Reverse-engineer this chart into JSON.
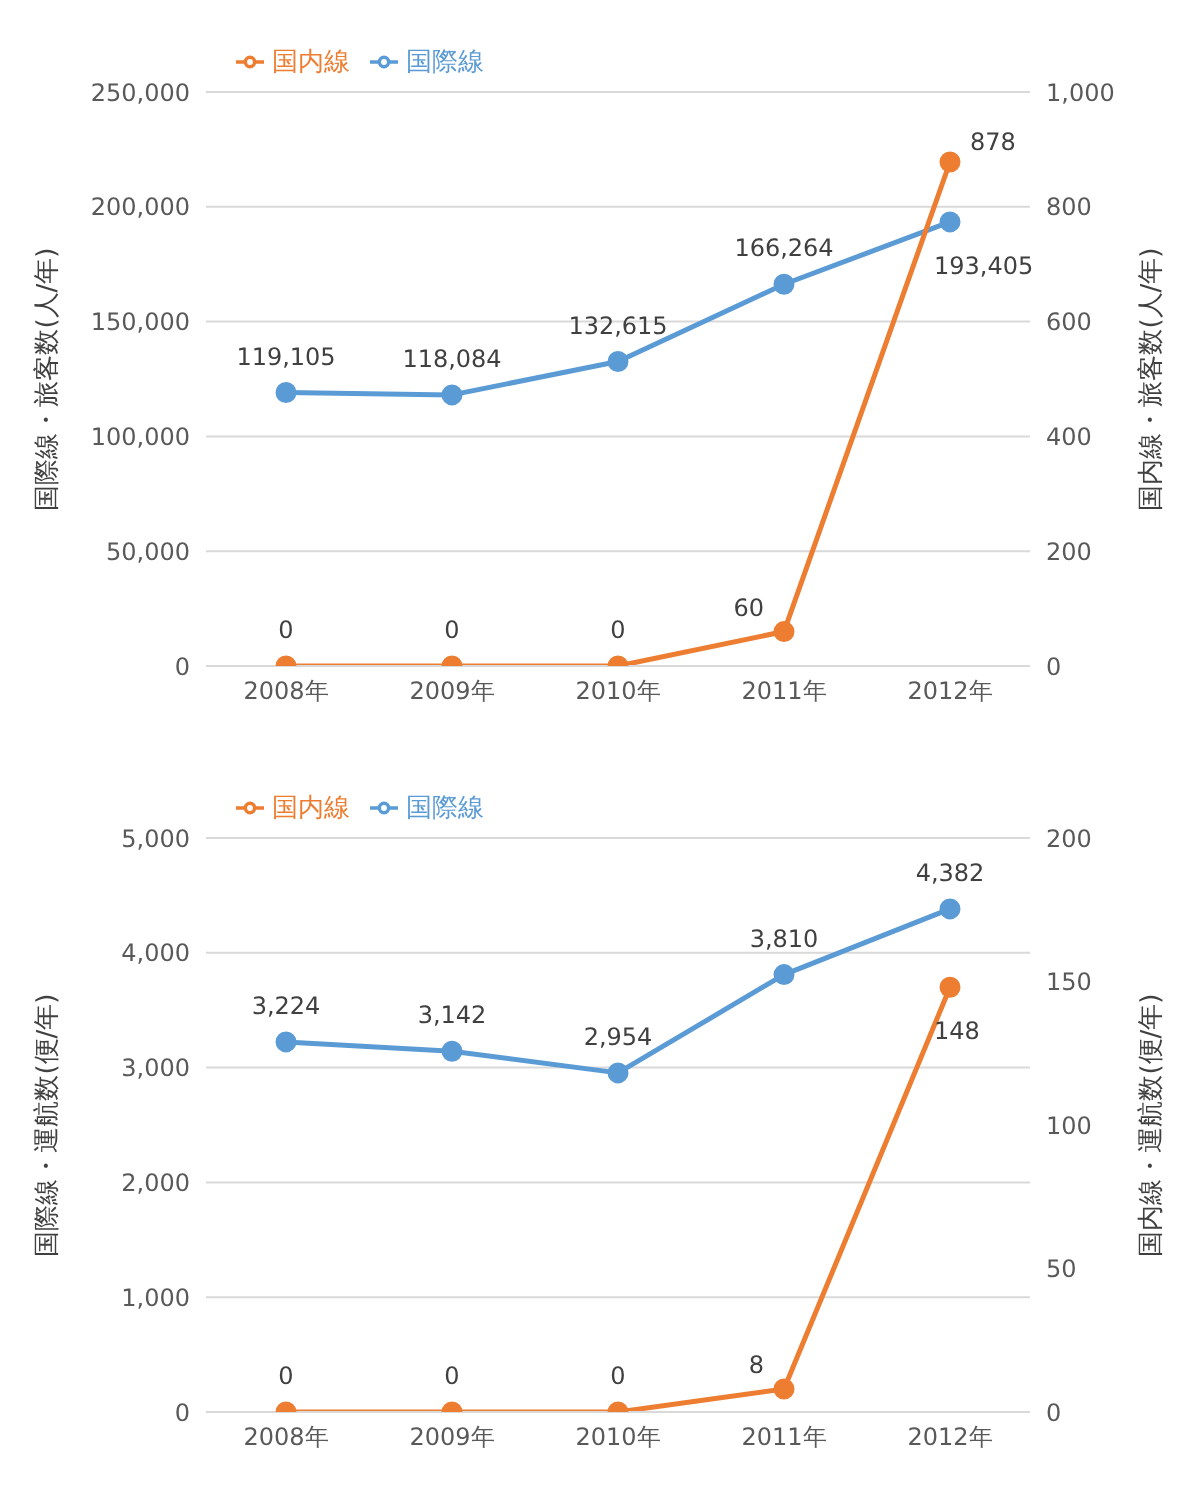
{
  "chart_data": [
    {
      "type": "line",
      "categories": [
        "2008年",
        "2009年",
        "2010年",
        "2011年",
        "2012年"
      ],
      "ylabel": "国際線・旅客数(人/年)",
      "y2label": "国内線・旅客数(人/年)",
      "ylim": [
        0,
        250000
      ],
      "yticks": [
        0,
        {
          "value": 50000,
          "label": "50,000"
        },
        {
          "value": 100000,
          "label": "100,000"
        },
        {
          "value": 150000,
          "label": "150,000"
        },
        {
          "value": 200000,
          "label": "200,000"
        },
        {
          "value": 250000,
          "label": "250,000"
        }
      ],
      "y2lim": [
        0,
        1000
      ],
      "y2ticks": [
        0,
        200,
        400,
        600,
        800,
        {
          "value": 1000,
          "label": "1,000"
        }
      ],
      "grid": "y",
      "legend": "top left",
      "marker": "circle",
      "series": [
        {
          "name": "国際線",
          "color": "#5b9bd5",
          "values": [
            119105,
            118084,
            132615,
            166264,
            193405
          ],
          "value_labels": [
            "119,105",
            "118,084",
            "132,615",
            "166,264",
            "193,405"
          ]
        },
        {
          "name": "国内線",
          "color": "#ed7d31",
          "axis": "y2",
          "values": [
            0,
            0,
            0,
            60,
            878
          ],
          "value_labels": [
            "0",
            "0",
            "0",
            "60",
            "878"
          ]
        }
      ]
    },
    {
      "type": "line",
      "categories": [
        "2008年",
        "2009年",
        "2010年",
        "2011年",
        "2012年"
      ],
      "ylabel": "国際線・運航数(便/年)",
      "y2label": "国内線・運航数(便/年)",
      "ylim": [
        0,
        5000
      ],
      "yticks": [
        0,
        {
          "value": 1000,
          "label": "1,000"
        },
        {
          "value": 2000,
          "label": "2,000"
        },
        {
          "value": 3000,
          "label": "3,000"
        },
        {
          "value": 4000,
          "label": "4,000"
        },
        {
          "value": 5000,
          "label": "5,000"
        }
      ],
      "y2lim": [
        0,
        200
      ],
      "y2ticks": [
        0,
        50,
        100,
        150,
        200
      ],
      "grid": "y",
      "legend": "top left",
      "marker": "circle",
      "series": [
        {
          "name": "国際線",
          "color": "#5b9bd5",
          "values": [
            3224,
            3142,
            2954,
            3810,
            4382
          ],
          "value_labels": [
            "3,224",
            "3,142",
            "2,954",
            "3,810",
            "4,382"
          ]
        },
        {
          "name": "国内線",
          "color": "#ed7d31",
          "axis": "y2",
          "values": [
            0,
            0,
            0,
            8,
            148
          ],
          "value_labels": [
            "0",
            "0",
            "0",
            "8",
            "148"
          ]
        }
      ]
    }
  ]
}
